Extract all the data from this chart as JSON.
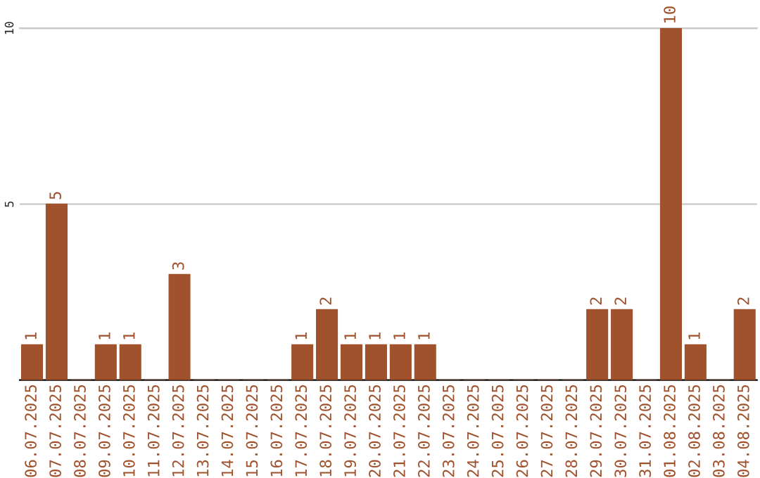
{
  "chart_data": {
    "type": "bar",
    "categories": [
      "06.07.2025",
      "07.07.2025",
      "08.07.2025",
      "09.07.2025",
      "10.07.2025",
      "11.07.2025",
      "12.07.2025",
      "13.07.2025",
      "14.07.2025",
      "15.07.2025",
      "16.07.2025",
      "17.07.2025",
      "18.07.2025",
      "19.07.2025",
      "20.07.2025",
      "21.07.2025",
      "22.07.2025",
      "23.07.2025",
      "24.07.2025",
      "25.07.2025",
      "26.07.2025",
      "27.07.2025",
      "28.07.2025",
      "29.07.2025",
      "30.07.2025",
      "31.07.2025",
      "01.08.2025",
      "02.08.2025",
      "03.08.2025",
      "04.08.2025"
    ],
    "values": [
      1,
      5,
      0,
      1,
      1,
      0,
      3,
      0,
      0,
      0,
      0,
      1,
      2,
      1,
      1,
      1,
      1,
      0,
      0,
      0,
      0,
      0,
      0,
      2,
      2,
      0,
      10,
      1,
      0,
      2
    ],
    "value_labels": [
      "1",
      "5",
      null,
      "1",
      "1",
      null,
      "3",
      null,
      null,
      null,
      null,
      "1",
      "2",
      "1",
      "1",
      "1",
      "1",
      null,
      null,
      null,
      null,
      null,
      null,
      "2",
      "2",
      null,
      "10",
      "1",
      null,
      "2"
    ],
    "color": "#a0522d",
    "ylim": [
      0,
      10
    ],
    "yticks": [
      5,
      10
    ],
    "grid": "y",
    "legend": false
  }
}
